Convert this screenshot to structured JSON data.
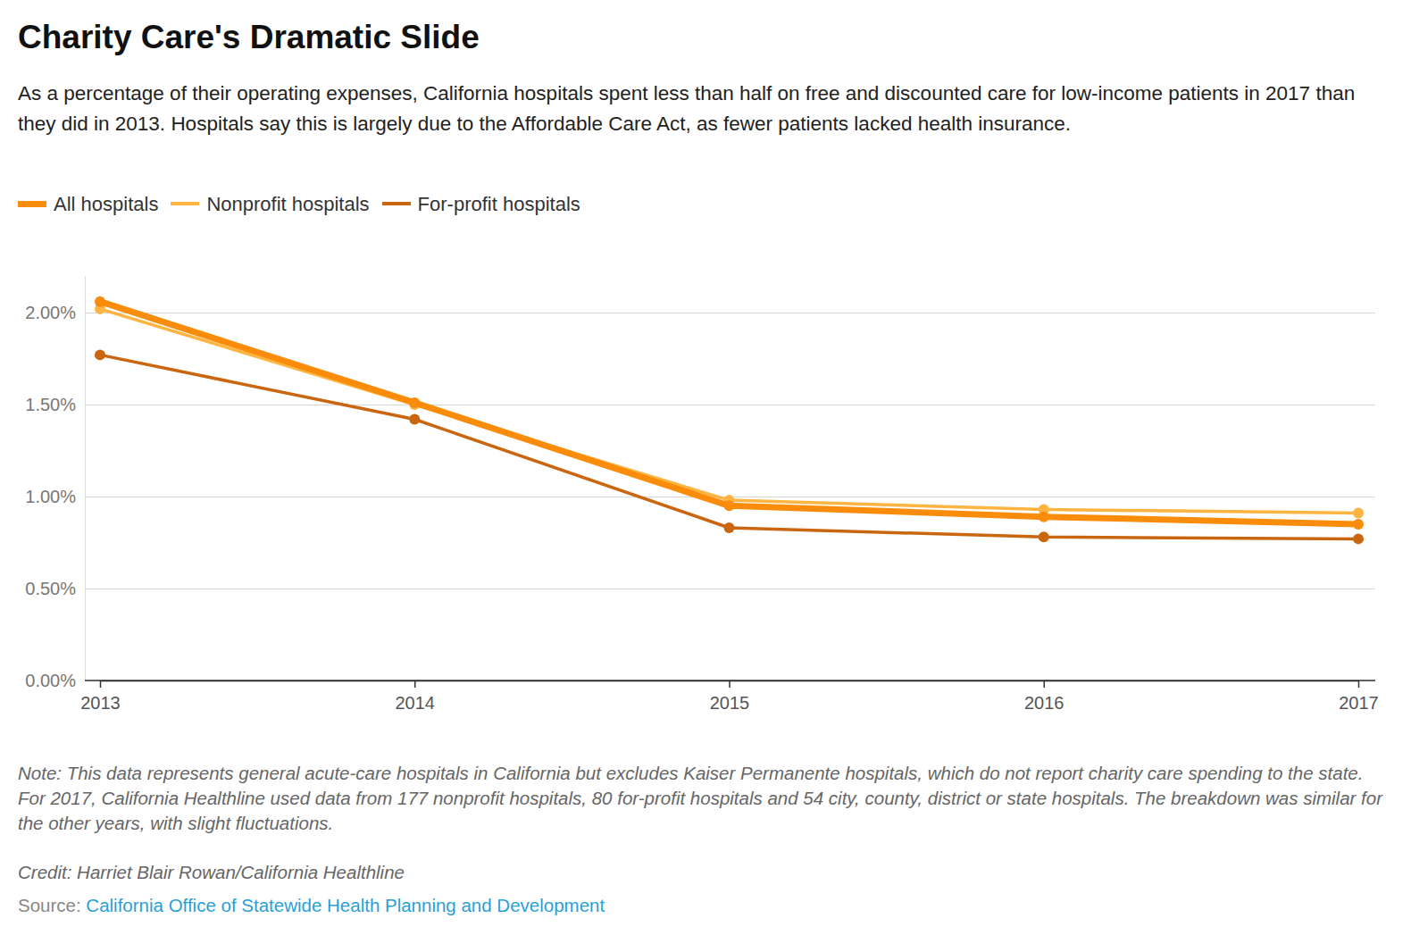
{
  "chart_data": {
    "type": "line",
    "title": "Charity Care's Dramatic Slide",
    "subtitle": "As a percentage of their operating expenses, California hospitals spent less than half on free and discounted care for low-income patients in 2017 than they did in 2013. Hospitals say this is largely due to the Affordable Care Act, as fewer patients lacked health insurance.",
    "x": [
      2013,
      2014,
      2015,
      2016,
      2017
    ],
    "xlim": [
      2013,
      2017
    ],
    "xticks": [
      2013,
      2014,
      2015,
      2016,
      2017
    ],
    "ylim": [
      0,
      2.2
    ],
    "yticks": [
      {
        "value": 0,
        "label": "0.00%"
      },
      {
        "value": 0.5,
        "label": "0.50%"
      },
      {
        "value": 1,
        "label": "1.00%"
      },
      {
        "value": 1.5,
        "label": "1.50%"
      },
      {
        "value": 2,
        "label": "2.00%"
      }
    ],
    "grid": true,
    "legend": "top-left",
    "series": [
      {
        "name": "All hospitals",
        "color": "#f98d0b",
        "marker": "circle",
        "line_style": "solid",
        "values": [
          2.06,
          1.51,
          0.95,
          0.89,
          0.85
        ]
      },
      {
        "name": "Nonprofit hospitals",
        "color": "#fdb441",
        "marker": "circle",
        "line_style": "solid",
        "values": [
          2.02,
          1.5,
          0.98,
          0.93,
          0.91
        ]
      },
      {
        "name": "For-profit hospitals",
        "color": "#c9660f",
        "marker": "circle",
        "line_style": "solid",
        "values": [
          1.77,
          1.42,
          0.83,
          0.78,
          0.77
        ]
      }
    ],
    "note": "Note: This data represents general acute-care hospitals in California but excludes Kaiser Permanente hospitals, which do not report charity care spending to the state. For 2017, California Healthline used data from 177 nonprofit hospitals, 80 for-profit hospitals and 54 city, county, district or state hospitals. The breakdown was similar for the other years, with slight fluctuations.",
    "credit": "Credit: Harriet Blair Rowan/California Healthline",
    "source_prefix": "Source:",
    "source": "California Office of Statewide Health Planning and Development"
  }
}
